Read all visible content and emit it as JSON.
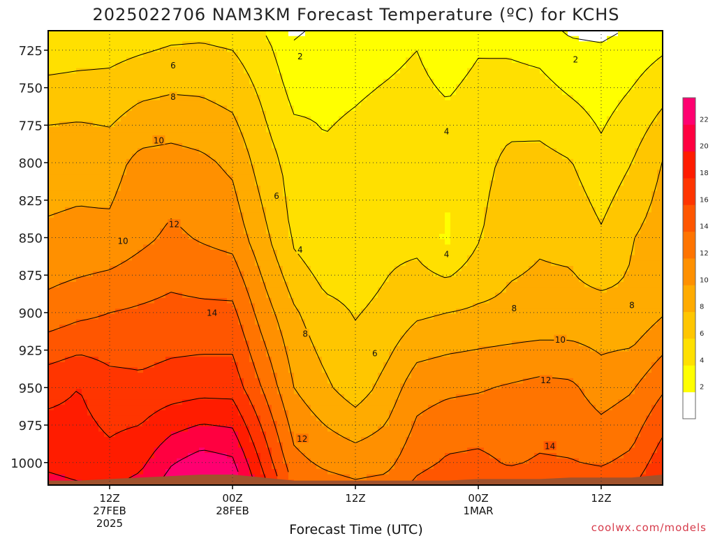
{
  "chart_data": {
    "type": "heatmap",
    "title": "2025022706 NAM3KM Forecast Temperature (ºC) for KCHS",
    "xlabel": "Forecast Time (UTC)",
    "ylabel": "",
    "credit": "coolwx.com/models",
    "y_axis": {
      "ticks": [
        725,
        750,
        775,
        800,
        825,
        850,
        875,
        900,
        925,
        950,
        975,
        1000
      ],
      "range": [
        1015,
        712
      ],
      "grid": true
    },
    "x_axis": {
      "ticks": [
        {
          "hour": 12,
          "lines": [
            "12Z",
            "27FEB",
            "2025"
          ]
        },
        {
          "hour": 24,
          "lines": [
            "00Z",
            "28FEB"
          ]
        },
        {
          "hour": 36,
          "lines": [
            "12Z"
          ]
        },
        {
          "hour": 48,
          "lines": [
            "00Z",
            "1MAR"
          ]
        },
        {
          "hour": 60,
          "lines": [
            "12Z"
          ]
        }
      ],
      "range": [
        6,
        66
      ],
      "grid": true
    },
    "colorbar": {
      "levels": [
        2,
        4,
        6,
        8,
        10,
        12,
        14,
        16,
        18,
        20,
        22
      ],
      "colors": [
        "#ffffff",
        "#ffff00",
        "#ffe000",
        "#ffc600",
        "#ffab00",
        "#ff9000",
        "#ff7400",
        "#ff5600",
        "#ff3500",
        "#ff1c00",
        "#ff0040",
        "#ff0070"
      ]
    },
    "contour_labels": [
      {
        "value": "2",
        "x": 30.6,
        "p": 729
      },
      {
        "value": "2",
        "x": 57.5,
        "p": 731
      },
      {
        "value": "6",
        "x": 18.2,
        "p": 735
      },
      {
        "value": "8",
        "x": 18.2,
        "p": 756
      },
      {
        "value": "4",
        "x": 44.9,
        "p": 779
      },
      {
        "value": "10",
        "x": 16.8,
        "p": 785
      },
      {
        "value": "6",
        "x": 28.3,
        "p": 822
      },
      {
        "value": "12",
        "x": 18.3,
        "p": 841
      },
      {
        "value": "10",
        "x": 13.3,
        "p": 852
      },
      {
        "value": "4",
        "x": 30.6,
        "p": 858
      },
      {
        "value": "4",
        "x": 44.9,
        "p": 861
      },
      {
        "value": "8",
        "x": 63.0,
        "p": 895
      },
      {
        "value": "14",
        "x": 22.0,
        "p": 900
      },
      {
        "value": "8",
        "x": 51.5,
        "p": 897
      },
      {
        "value": "8",
        "x": 31.1,
        "p": 914
      },
      {
        "value": "10",
        "x": 56.0,
        "p": 918
      },
      {
        "value": "6",
        "x": 37.9,
        "p": 927
      },
      {
        "value": "12",
        "x": 54.6,
        "p": 945
      },
      {
        "value": "12",
        "x": 30.8,
        "p": 984
      },
      {
        "value": "14",
        "x": 55.0,
        "p": 989
      }
    ],
    "fields": [
      {
        "t": 6,
        "t725": 5.0,
        "t800": 9.5,
        "t850": 10.2,
        "t900": 12.8,
        "t950": 17.4,
        "t1000": 19.5
      },
      {
        "t": 9,
        "t725": 5.2,
        "t800": 9.6,
        "t850": 10.3,
        "t900": 13.5,
        "t950": 18.0,
        "t1000": 19.0
      },
      {
        "t": 12,
        "t725": 5.4,
        "t800": 9.2,
        "t850": 10.5,
        "t900": 14.0,
        "t950": 16.8,
        "t1000": 18.6
      },
      {
        "t": 15,
        "t725": 5.8,
        "t800": 10.6,
        "t850": 11.5,
        "t900": 14.3,
        "t950": 16.5,
        "t1000": 19.5
      },
      {
        "t": 18,
        "t725": 6.2,
        "t800": 10.8,
        "t850": 12.4,
        "t900": 14.6,
        "t950": 16.9,
        "t1000": 21.8
      },
      {
        "t": 21,
        "t725": 6.3,
        "t800": 10.4,
        "t850": 11.8,
        "t900": 14.5,
        "t950": 17.2,
        "t1000": 23.0
      },
      {
        "t": 24,
        "t725": 6.0,
        "t800": 9.6,
        "t850": 11.3,
        "t900": 14.5,
        "t950": 17.2,
        "t1000": 22.4
      },
      {
        "t": 27,
        "t725": 4.8,
        "t800": 7.0,
        "t850": 8.6,
        "t900": 11.0,
        "t950": 13.8,
        "t1000": 17.5
      },
      {
        "t": 30,
        "t725": 2.4,
        "t800": 5.2,
        "t850": 5.6,
        "t900": 8.3,
        "t950": 10.0,
        "t1000": 12.6
      },
      {
        "t": 33,
        "t725": 3.4,
        "t800": 4.2,
        "t850": 4.3,
        "t900": 6.6,
        "t950": 8.4,
        "t1000": 11.6
      },
      {
        "t": 36,
        "t725": 3.5,
        "t800": 4.5,
        "t850": 4.8,
        "t900": 5.9,
        "t950": 6.9,
        "t1000": 11.1
      },
      {
        "t": 39,
        "t725": 3.7,
        "t800": 4.8,
        "t850": 5.5,
        "t900": 6.4,
        "t950": 8.7,
        "t1000": 11.4
      },
      {
        "t": 42,
        "t725": 4.0,
        "t800": 4.9,
        "t850": 5.4,
        "t900": 7.6,
        "t950": 11.2,
        "t1000": 13.3
      },
      {
        "t": 45,
        "t725": 3.3,
        "t800": 4.9,
        "t850": 3.6,
        "t900": 8.0,
        "t950": 11.6,
        "t1000": 14.3
      },
      {
        "t": 48,
        "t725": 3.9,
        "t800": 5.3,
        "t850": 5.8,
        "t900": 8.3,
        "t950": 11.8,
        "t1000": 14.5
      },
      {
        "t": 51,
        "t725": 3.8,
        "t800": 6.5,
        "t850": 7.4,
        "t900": 8.4,
        "t950": 12.2,
        "t1000": 13.8
      },
      {
        "t": 54,
        "t725": 3.5,
        "t800": 6.6,
        "t850": 7.8,
        "t900": 8.5,
        "t950": 12.6,
        "t1000": 14.2
      },
      {
        "t": 57,
        "t725": 2.5,
        "t800": 6.1,
        "t850": 7.6,
        "t900": 8.6,
        "t950": 12.4,
        "t1000": 14.1
      },
      {
        "t": 60,
        "t725": 2.3,
        "t800": 4.6,
        "t850": 6.3,
        "t900": 8.7,
        "t950": 11.0,
        "t1000": 13.8
      },
      {
        "t": 63,
        "t725": 3.0,
        "t800": 6.0,
        "t850": 7.9,
        "t900": 8.4,
        "t950": 11.8,
        "t1000": 14.5
      },
      {
        "t": 66,
        "t725": 3.8,
        "t800": 8.1,
        "t850": 9.0,
        "t900": 9.8,
        "t950": 13.7,
        "t1000": 17.2
      }
    ],
    "surface": {
      "color": "#a0522d",
      "pressure": [
        1012,
        1012,
        1011,
        1010,
        1009,
        1008,
        1008,
        1010,
        1012,
        1012,
        1012,
        1012,
        1012,
        1012,
        1011,
        1011,
        1011,
        1010,
        1010,
        1010,
        1008
      ]
    }
  }
}
